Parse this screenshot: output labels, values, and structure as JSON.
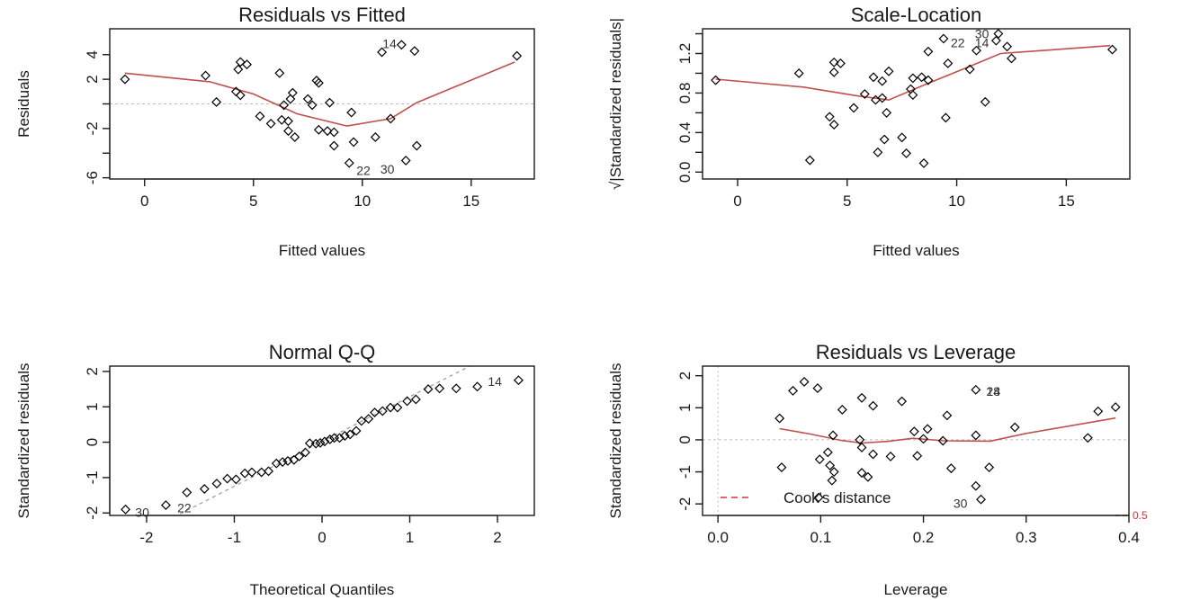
{
  "chart_data": [
    {
      "id": "residuals-vs-fitted",
      "type": "scatter",
      "title": "Residuals vs Fitted",
      "xlabel": "Fitted values",
      "ylabel": "Residuals",
      "xlim": [
        -1.6,
        17.9
      ],
      "ylim": [
        -6.1,
        6.1
      ],
      "xticks": [
        0,
        5,
        10,
        15
      ],
      "xtick_labels": [
        "0",
        "5",
        "10",
        "15"
      ],
      "yticks": [
        -6,
        -4,
        -2,
        0,
        2,
        4
      ],
      "ytick_labels": [
        "-6",
        "",
        "-2",
        "",
        "2",
        "4"
      ],
      "hline": 0,
      "points": [
        [
          -0.9,
          2.0
        ],
        [
          2.8,
          2.3
        ],
        [
          3.3,
          0.15
        ],
        [
          4.2,
          1.0
        ],
        [
          4.4,
          0.7
        ],
        [
          4.3,
          2.8
        ],
        [
          4.4,
          3.4
        ],
        [
          4.7,
          3.2
        ],
        [
          5.3,
          -1.0
        ],
        [
          5.8,
          -1.6
        ],
        [
          6.2,
          2.5
        ],
        [
          6.3,
          -1.3
        ],
        [
          6.4,
          -0.1
        ],
        [
          6.6,
          -1.4
        ],
        [
          6.6,
          -2.2
        ],
        [
          6.7,
          0.4
        ],
        [
          6.8,
          0.9
        ],
        [
          6.9,
          -2.7
        ],
        [
          7.5,
          0.4
        ],
        [
          7.7,
          -0.1
        ],
        [
          7.9,
          1.9
        ],
        [
          8.0,
          1.7
        ],
        [
          8.0,
          -2.1
        ],
        [
          8.4,
          -2.2
        ],
        [
          8.5,
          0.1
        ],
        [
          8.7,
          -2.3
        ],
        [
          8.7,
          -3.4
        ],
        [
          9.5,
          -0.7
        ],
        [
          9.4,
          -4.8
        ],
        [
          9.6,
          -3.1
        ],
        [
          10.6,
          -2.7
        ],
        [
          10.9,
          4.2
        ],
        [
          11.8,
          4.8
        ],
        [
          11.3,
          -1.2
        ],
        [
          12.0,
          -4.6
        ],
        [
          12.4,
          4.3
        ],
        [
          12.5,
          -3.4
        ],
        [
          17.1,
          3.9
        ]
      ],
      "smoother": [
        [
          -0.9,
          2.5
        ],
        [
          3.0,
          1.8
        ],
        [
          5.0,
          0.8
        ],
        [
          7.0,
          -0.8
        ],
        [
          9.3,
          -1.8
        ],
        [
          11.3,
          -1.2
        ],
        [
          12.5,
          0.1
        ],
        [
          17.0,
          3.4
        ]
      ],
      "point_labels": [
        {
          "text": "14",
          "x": 11.25,
          "y": 4.9
        },
        {
          "text": "22",
          "x": 10.05,
          "y": -5.4
        },
        {
          "text": "30",
          "x": 11.15,
          "y": -5.3
        }
      ]
    },
    {
      "id": "scale-location",
      "type": "scatter",
      "title": "Scale-Location",
      "xlabel": "Fitted values",
      "ylabel": "√|Standardized residuals|",
      "xlim": [
        -1.6,
        17.9
      ],
      "ylim": [
        -0.07,
        1.45
      ],
      "xticks": [
        0,
        5,
        10,
        15
      ],
      "xtick_labels": [
        "0",
        "5",
        "10",
        "15"
      ],
      "yticks": [
        0.0,
        0.2,
        0.4,
        0.6,
        0.8,
        1.0,
        1.2,
        1.4
      ],
      "ytick_labels": [
        "0.0",
        "",
        "0.4",
        "",
        "0.8",
        "",
        "1.2",
        ""
      ],
      "points": [
        [
          -1.0,
          0.93
        ],
        [
          2.8,
          1.0
        ],
        [
          3.3,
          0.12
        ],
        [
          4.2,
          0.56
        ],
        [
          4.4,
          0.48
        ],
        [
          4.4,
          1.01
        ],
        [
          4.4,
          1.11
        ],
        [
          4.7,
          1.1
        ],
        [
          5.3,
          0.65
        ],
        [
          5.8,
          0.79
        ],
        [
          6.2,
          0.96
        ],
        [
          6.3,
          0.73
        ],
        [
          6.4,
          0.2
        ],
        [
          6.6,
          0.92
        ],
        [
          6.6,
          0.75
        ],
        [
          6.7,
          0.33
        ],
        [
          6.8,
          0.6
        ],
        [
          6.9,
          1.02
        ],
        [
          7.5,
          0.35
        ],
        [
          7.7,
          0.19
        ],
        [
          8.0,
          0.95
        ],
        [
          7.9,
          0.84
        ],
        [
          8.0,
          0.78
        ],
        [
          8.4,
          0.96
        ],
        [
          8.5,
          0.09
        ],
        [
          8.7,
          1.22
        ],
        [
          8.7,
          0.93
        ],
        [
          9.4,
          1.35
        ],
        [
          9.5,
          0.55
        ],
        [
          9.6,
          1.1
        ],
        [
          10.6,
          1.04
        ],
        [
          10.9,
          1.23
        ],
        [
          11.3,
          0.71
        ],
        [
          11.8,
          1.33
        ],
        [
          11.9,
          1.4
        ],
        [
          12.3,
          1.27
        ],
        [
          12.5,
          1.15
        ],
        [
          17.1,
          1.24
        ]
      ],
      "smoother": [
        [
          -1.0,
          0.94
        ],
        [
          3.0,
          0.86
        ],
        [
          5.5,
          0.77
        ],
        [
          6.9,
          0.73
        ],
        [
          8.5,
          0.88
        ],
        [
          10.5,
          1.06
        ],
        [
          12.0,
          1.2
        ],
        [
          17.0,
          1.28
        ]
      ],
      "point_labels": [
        {
          "text": "22",
          "x": 10.05,
          "y": 1.31
        },
        {
          "text": "30",
          "x": 11.15,
          "y": 1.4
        },
        {
          "text": "14",
          "x": 11.15,
          "y": 1.31
        }
      ]
    },
    {
      "id": "normal-qq",
      "type": "scatter",
      "title": "Normal Q-Q",
      "xlabel": "Theoretical Quantiles",
      "ylabel": "Standardized residuals",
      "xlim": [
        -2.42,
        2.42
      ],
      "ylim": [
        -2.07,
        2.15
      ],
      "xticks": [
        -2,
        -1,
        0,
        1,
        2
      ],
      "xtick_labels": [
        "-2",
        "-1",
        "0",
        "1",
        "2"
      ],
      "yticks": [
        -2,
        -1,
        0,
        1,
        2
      ],
      "ytick_labels": [
        "-2",
        "-1",
        "0",
        "1",
        "2"
      ],
      "reference_line": {
        "slope": 1.265,
        "intercept": 0.02
      },
      "points": [
        [
          -2.24,
          -1.9
        ],
        [
          -1.78,
          -1.78
        ],
        [
          -1.54,
          -1.42
        ],
        [
          -1.34,
          -1.32
        ],
        [
          -1.2,
          -1.17
        ],
        [
          -1.08,
          -1.03
        ],
        [
          -0.98,
          -1.05
        ],
        [
          -0.88,
          -0.88
        ],
        [
          -0.8,
          -0.85
        ],
        [
          -0.69,
          -0.85
        ],
        [
          -0.61,
          -0.82
        ],
        [
          -0.52,
          -0.6
        ],
        [
          -0.45,
          -0.56
        ],
        [
          -0.39,
          -0.53
        ],
        [
          -0.32,
          -0.5
        ],
        [
          -0.26,
          -0.4
        ],
        [
          -0.19,
          -0.29
        ],
        [
          -0.14,
          -0.03
        ],
        [
          -0.07,
          -0.04
        ],
        [
          -0.02,
          -0.02
        ],
        [
          0.03,
          0.02
        ],
        [
          0.09,
          0.08
        ],
        [
          0.14,
          0.12
        ],
        [
          0.2,
          0.12
        ],
        [
          0.26,
          0.18
        ],
        [
          0.32,
          0.22
        ],
        [
          0.39,
          0.32
        ],
        [
          0.45,
          0.6
        ],
        [
          0.53,
          0.66
        ],
        [
          0.6,
          0.84
        ],
        [
          0.69,
          0.88
        ],
        [
          0.78,
          0.98
        ],
        [
          0.86,
          0.98
        ],
        [
          0.97,
          1.16
        ],
        [
          1.07,
          1.21
        ],
        [
          1.21,
          1.5
        ],
        [
          1.34,
          1.52
        ],
        [
          1.53,
          1.52
        ],
        [
          1.77,
          1.57
        ],
        [
          2.24,
          1.75
        ]
      ],
      "point_labels": [
        {
          "text": "30",
          "x": -2.05,
          "y": -1.98
        },
        {
          "text": "22",
          "x": -1.57,
          "y": -1.86
        },
        {
          "text": "14",
          "x": 1.97,
          "y": 1.72
        }
      ]
    },
    {
      "id": "residuals-vs-leverage",
      "type": "scatter",
      "title": "Residuals vs Leverage",
      "xlabel": "Leverage",
      "ylabel": "Standardized residuals",
      "xlim": [
        -0.015,
        0.4
      ],
      "ylim": [
        -2.36,
        2.3
      ],
      "xticks": [
        0.0,
        0.1,
        0.2,
        0.3,
        0.4
      ],
      "xtick_labels": [
        "0.0",
        "0.1",
        "0.2",
        "0.3",
        "0.4"
      ],
      "yticks": [
        -2,
        -1,
        0,
        1,
        2
      ],
      "ytick_labels": [
        "-2",
        "-1",
        "0",
        "1",
        "2"
      ],
      "hline": 0,
      "vline": 0,
      "points": [
        [
          0.06,
          0.67
        ],
        [
          0.062,
          -0.86
        ],
        [
          0.073,
          1.53
        ],
        [
          0.084,
          1.81
        ],
        [
          0.097,
          1.61
        ],
        [
          0.099,
          -0.61
        ],
        [
          0.107,
          -0.39
        ],
        [
          0.109,
          -0.8
        ],
        [
          0.112,
          0.14
        ],
        [
          0.113,
          -1.0
        ],
        [
          0.111,
          -1.27
        ],
        [
          0.121,
          0.94
        ],
        [
          0.098,
          -1.8
        ],
        [
          0.14,
          1.31
        ],
        [
          0.138,
          0.0
        ],
        [
          0.14,
          -0.24
        ],
        [
          0.14,
          -1.03
        ],
        [
          0.146,
          -1.16
        ],
        [
          0.151,
          1.06
        ],
        [
          0.151,
          -0.45
        ],
        [
          0.168,
          -0.52
        ],
        [
          0.179,
          1.2
        ],
        [
          0.191,
          0.26
        ],
        [
          0.194,
          -0.5
        ],
        [
          0.2,
          0.03
        ],
        [
          0.204,
          0.34
        ],
        [
          0.219,
          -0.03
        ],
        [
          0.223,
          0.76
        ],
        [
          0.227,
          -0.89
        ],
        [
          0.251,
          1.56
        ],
        [
          0.251,
          0.14
        ],
        [
          0.251,
          -1.44
        ],
        [
          0.256,
          -1.86
        ],
        [
          0.264,
          -0.86
        ],
        [
          0.289,
          0.39
        ],
        [
          0.36,
          0.06
        ],
        [
          0.37,
          0.89
        ],
        [
          0.387,
          1.02
        ]
      ],
      "smoother": [
        [
          0.06,
          0.35
        ],
        [
          0.09,
          0.18
        ],
        [
          0.12,
          -0.02
        ],
        [
          0.14,
          -0.1
        ],
        [
          0.165,
          -0.05
        ],
        [
          0.19,
          0.05
        ],
        [
          0.22,
          -0.03
        ],
        [
          0.265,
          -0.04
        ],
        [
          0.3,
          0.2
        ],
        [
          0.387,
          0.68
        ]
      ],
      "point_labels": [
        {
          "text": "28",
          "x": 0.268,
          "y": 1.52
        },
        {
          "text": "14",
          "x": 0.268,
          "y": 1.52
        },
        {
          "text": "30",
          "x": 0.236,
          "y": -1.98
        }
      ],
      "legend": {
        "label": "Cook's distance",
        "position": "bottom-left"
      },
      "cook_contour_label": "0.5"
    }
  ],
  "colors": {
    "points": "#000000",
    "smoother": "#c0504d",
    "reference": "#9a9a9a",
    "cooks": "#e0312f"
  }
}
